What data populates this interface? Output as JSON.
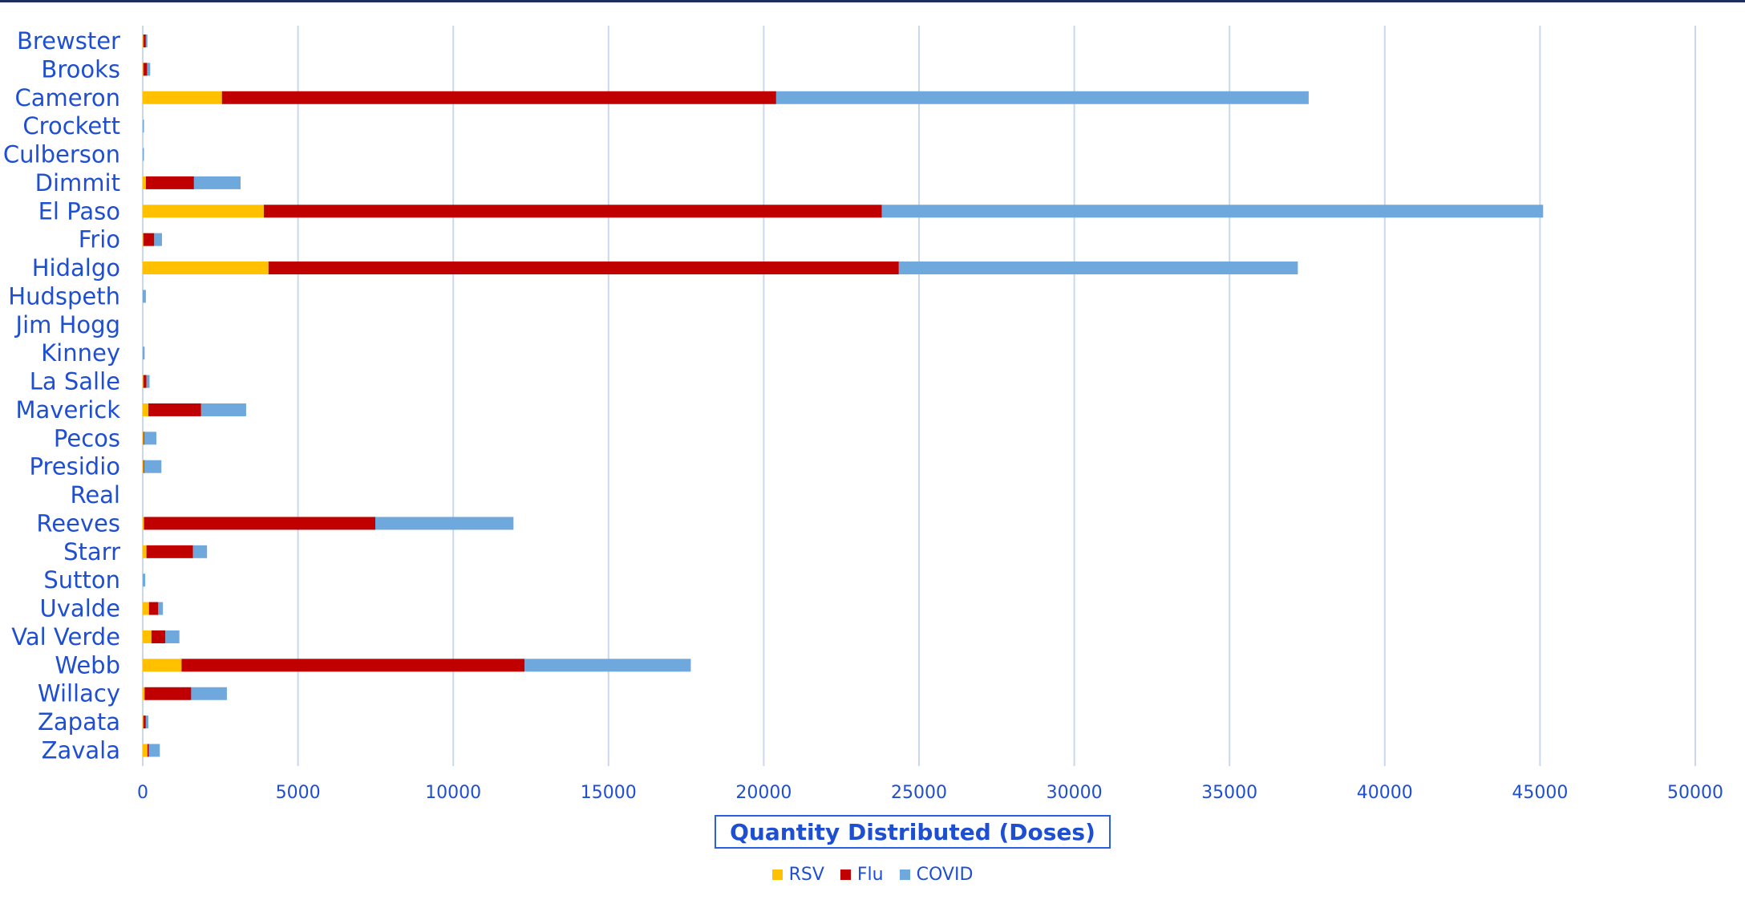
{
  "chart_data": {
    "type": "bar",
    "orientation": "horizontal",
    "stacked": true,
    "title": "",
    "xlabel": "Quantity Distributed (Doses)",
    "ylabel": "",
    "xlim": [
      0,
      50000
    ],
    "x_ticks": [
      0,
      5000,
      10000,
      15000,
      20000,
      25000,
      30000,
      35000,
      40000,
      45000,
      50000
    ],
    "grid": "vertical",
    "legend_position": "bottom",
    "categories": [
      "Brewster",
      "Brooks",
      "Cameron",
      "Crockett",
      "Culberson",
      "Dimmit",
      "El Paso",
      "Frio",
      "Hidalgo",
      "Hudspeth",
      "Jim Hogg",
      "Kinney",
      "La Salle",
      "Maverick",
      "Pecos",
      "Presidio",
      "Real",
      "Reeves",
      "Starr",
      "Sutton",
      "Uvalde",
      "Val Verde",
      "Webb",
      "Willacy",
      "Zapata",
      "Zavala"
    ],
    "series": [
      {
        "name": "RSV",
        "color": "#ffc000",
        "values": [
          20,
          20,
          2550,
          0,
          0,
          100,
          3900,
          20,
          4050,
          0,
          0,
          0,
          20,
          180,
          20,
          20,
          0,
          40,
          120,
          0,
          200,
          280,
          1250,
          60,
          20,
          150
        ]
      },
      {
        "name": "Flu",
        "color": "#c00000",
        "values": [
          80,
          120,
          17850,
          0,
          0,
          1550,
          19900,
          350,
          20300,
          0,
          0,
          0,
          100,
          1700,
          20,
          20,
          0,
          7450,
          1500,
          0,
          300,
          450,
          11050,
          1500,
          80,
          50
        ]
      },
      {
        "name": "COVID",
        "color": "#6fa8dc",
        "values": [
          50,
          100,
          17150,
          40,
          20,
          1500,
          21300,
          250,
          12850,
          100,
          0,
          60,
          100,
          1450,
          400,
          560,
          0,
          4450,
          450,
          80,
          150,
          450,
          5350,
          1150,
          80,
          350
        ]
      }
    ]
  }
}
